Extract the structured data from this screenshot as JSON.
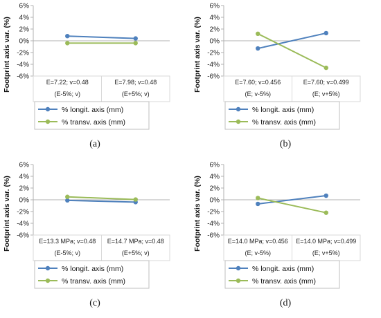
{
  "colors": {
    "longit": "#4f81bd",
    "transv": "#9bbb59",
    "axis": "#b0b0b0",
    "grid": "#d9d9d9"
  },
  "chart_data": [
    {
      "type": "line",
      "panel_label": "(a)",
      "ylabel": "Footprint axis var. (%)",
      "ylim": [
        -6,
        6
      ],
      "yticks": [
        "6%",
        "4%",
        "2%",
        "0%",
        "-2%",
        "-4%",
        "-6%"
      ],
      "categories": [
        [
          "E=7.22; v=0.48",
          "(E-5%; v)"
        ],
        [
          "E=7.98; v=0.48",
          "(E+5%; v)"
        ]
      ],
      "series": [
        {
          "name": "% longit. axis (mm)",
          "values": [
            0.8,
            0.4
          ]
        },
        {
          "name": "% transv. axis (mm)",
          "values": [
            -0.4,
            -0.4
          ]
        }
      ],
      "legend": "bottom"
    },
    {
      "type": "line",
      "panel_label": "(b)",
      "ylabel": "Footprint axis var. (%)",
      "ylim": [
        -6,
        6
      ],
      "yticks": [
        "6%",
        "4%",
        "2%",
        "0%",
        "-2%",
        "-4%",
        "-6%"
      ],
      "categories": [
        [
          "E=7.60; v=0.456",
          "(E; v-5%)"
        ],
        [
          "E=7.60; v=0.499",
          "(E; v+5%)"
        ]
      ],
      "series": [
        {
          "name": "% longit. axis (mm)",
          "values": [
            -1.3,
            1.3
          ]
        },
        {
          "name": "% transv. axis (mm)",
          "values": [
            1.2,
            -4.6
          ]
        }
      ],
      "legend": "bottom"
    },
    {
      "type": "line",
      "panel_label": "(c)",
      "ylabel": "Footprint axis var. (%)",
      "ylim": [
        -6,
        6
      ],
      "yticks": [
        "6%",
        "4%",
        "2%",
        "0%",
        "-2%",
        "-4%",
        "-6%"
      ],
      "categories": [
        [
          "E=13.3 MPa; v=0.48",
          "(E-5%; v)"
        ],
        [
          "E=14.7 MPa; v=0.48",
          "(E+5%; v)"
        ]
      ],
      "series": [
        {
          "name": "% longit. axis (mm)",
          "values": [
            -0.1,
            -0.4
          ]
        },
        {
          "name": "% transv. axis (mm)",
          "values": [
            0.5,
            0.05
          ]
        }
      ],
      "legend": "bottom"
    },
    {
      "type": "line",
      "panel_label": "(d)",
      "ylabel": "Footprint axis var. (%)",
      "ylim": [
        -6,
        6
      ],
      "yticks": [
        "6%",
        "4%",
        "2%",
        "0%",
        "-2%",
        "-4%",
        "-6%"
      ],
      "categories": [
        [
          "E=14.0 MPa; v=0.456",
          "(E; v-5%)"
        ],
        [
          "E=14.0 MPa; v=0.499",
          "(E; v+5%)"
        ]
      ],
      "series": [
        {
          "name": "% longit. axis (mm)",
          "values": [
            -0.7,
            0.7
          ]
        },
        {
          "name": "% transv. axis (mm)",
          "values": [
            0.3,
            -2.2
          ]
        }
      ],
      "legend": "bottom"
    }
  ]
}
